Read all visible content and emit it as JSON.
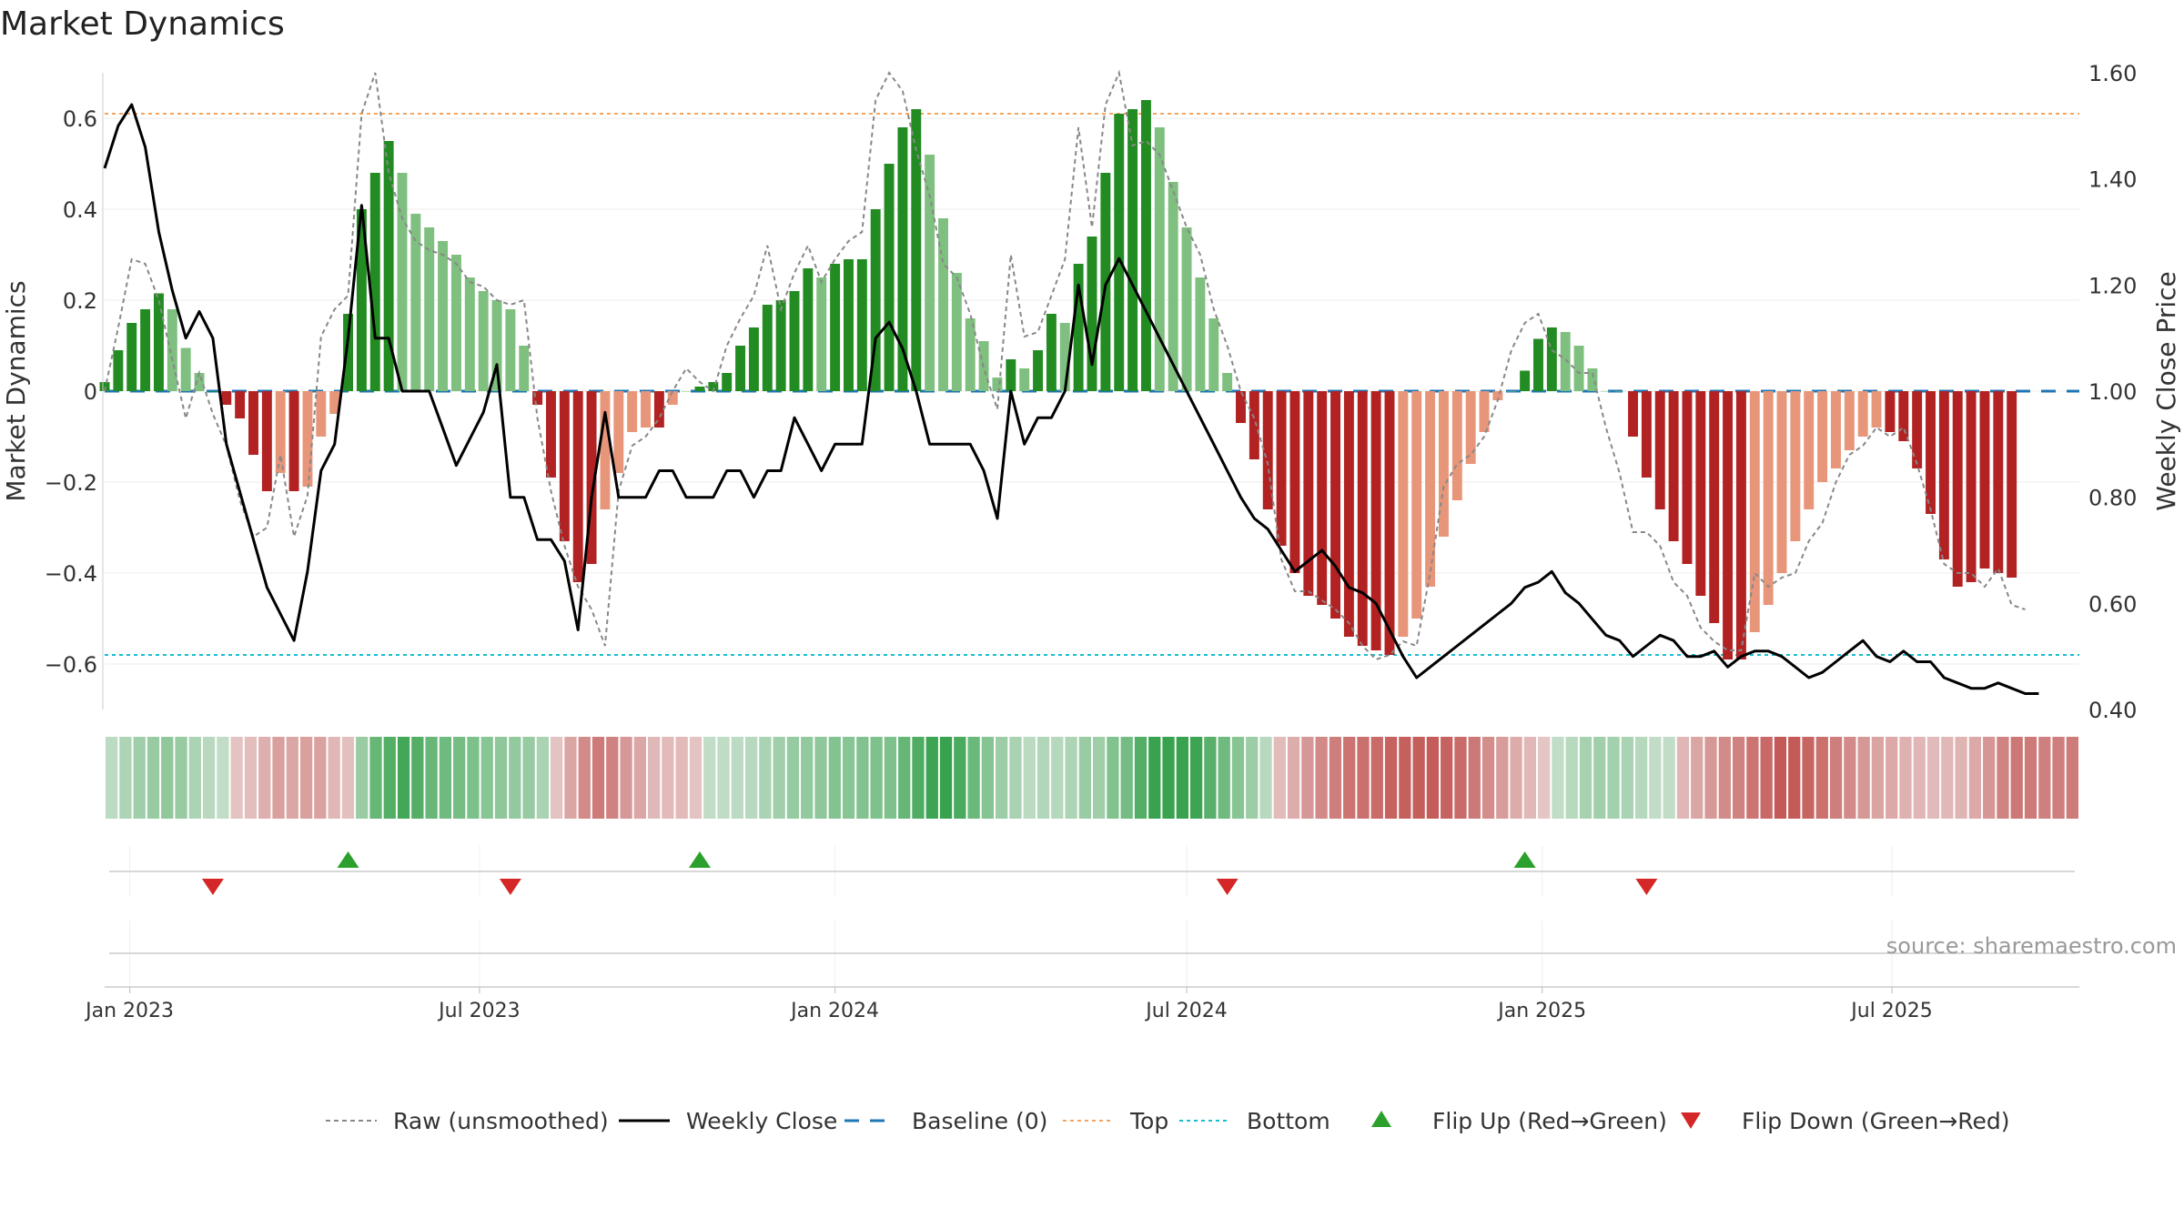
{
  "chart_data": {
    "type": "bar",
    "title": "Market Dynamics",
    "ylabel_left": "Market Dynamics",
    "ylabel_right": "Weekly Close Price",
    "source": "source: sharemaestro.com",
    "ylim_left": [
      -0.7,
      0.7
    ],
    "ylim_right": [
      0.4,
      1.6
    ],
    "yticks_left": [
      0.6,
      0.4,
      0.2,
      0,
      -0.2,
      -0.4,
      -0.6
    ],
    "yticks_left_labels": [
      "0.6",
      "0.4",
      "0.2",
      "0",
      "−0.2",
      "−0.4",
      "−0.6"
    ],
    "yticks_right": [
      1.6,
      1.4,
      1.2,
      1.0,
      0.8,
      0.6,
      0.4
    ],
    "yticks_right_labels": [
      "1.60",
      "1.40",
      "1.20",
      "1.00",
      "0.80",
      "0.60",
      "0.40"
    ],
    "x_start": "2022-12-19",
    "x_end": "2025-10-06",
    "xticks": [
      {
        "date": "2023-01-01",
        "label": "Jan 2023"
      },
      {
        "date": "2023-07-01",
        "label": "Jul 2023"
      },
      {
        "date": "2024-01-01",
        "label": "Jan 2024"
      },
      {
        "date": "2024-07-01",
        "label": "Jul 2024"
      },
      {
        "date": "2025-01-01",
        "label": "Jan 2025"
      },
      {
        "date": "2025-07-01",
        "label": "Jul 2025"
      }
    ],
    "top_line": 0.61,
    "bottom_line": -0.58,
    "baseline": 0,
    "colors": {
      "strong_green": "#228b22",
      "light_green": "#7fbf7f",
      "strong_red": "#b22222",
      "light_red": "#e8967a",
      "raw": "#888888",
      "close": "#000000",
      "baseline": "#1f77b4",
      "top": "#f4a460",
      "bottom": "#17becf",
      "flip_up": "#2ca02c",
      "flip_down": "#d62728"
    },
    "bars": [
      0.02,
      0.09,
      0.15,
      0.18,
      0.215,
      0.18,
      0.095,
      0.04,
      0.0,
      -0.03,
      -0.06,
      -0.14,
      -0.22,
      -0.18,
      -0.22,
      -0.21,
      -0.1,
      -0.05,
      0.17,
      0.4,
      0.48,
      0.55,
      0.48,
      0.39,
      0.36,
      0.33,
      0.3,
      0.25,
      0.22,
      0.2,
      0.18,
      0.1,
      -0.03,
      -0.19,
      -0.33,
      -0.42,
      -0.38,
      -0.26,
      -0.18,
      -0.09,
      -0.08,
      -0.08,
      -0.03,
      0.0,
      0.01,
      0.02,
      0.04,
      0.1,
      0.14,
      0.19,
      0.2,
      0.22,
      0.27,
      0.25,
      0.28,
      0.29,
      0.29,
      0.4,
      0.5,
      0.58,
      0.62,
      0.52,
      0.38,
      0.26,
      0.16,
      0.11,
      0.03,
      0.07,
      0.05,
      0.09,
      0.17,
      0.15,
      0.28,
      0.34,
      0.48,
      0.61,
      0.62,
      0.64,
      0.58,
      0.46,
      0.36,
      0.25,
      0.16,
      0.04,
      -0.07,
      -0.15,
      -0.26,
      -0.34,
      -0.4,
      -0.45,
      -0.47,
      -0.5,
      -0.54,
      -0.56,
      -0.57,
      -0.58,
      -0.54,
      -0.5,
      -0.43,
      -0.32,
      -0.24,
      -0.16,
      -0.09,
      -0.02,
      0.0,
      0.045,
      0.115,
      0.14,
      0.13,
      0.1,
      0.05,
      0.0,
      0.0,
      -0.1,
      -0.19,
      -0.26,
      -0.33,
      -0.38,
      -0.45,
      -0.51,
      -0.59,
      -0.59,
      -0.53,
      -0.47,
      -0.4,
      -0.33,
      -0.26,
      -0.2,
      -0.17,
      -0.13,
      -0.1,
      -0.08,
      -0.09,
      -0.11,
      -0.17,
      -0.27,
      -0.37,
      -0.43,
      -0.42,
      -0.39,
      -0.4,
      -0.41
    ],
    "bar_strength": [
      "s",
      "s",
      "s",
      "s",
      "s",
      "l",
      "l",
      "l",
      "s",
      "s",
      "s",
      "s",
      "s",
      "l",
      "s",
      "l",
      "l",
      "l",
      "s",
      "s",
      "s",
      "s",
      "l",
      "l",
      "l",
      "l",
      "l",
      "l",
      "l",
      "l",
      "l",
      "l",
      "s",
      "s",
      "s",
      "s",
      "s",
      "l",
      "l",
      "l",
      "l",
      "s",
      "l",
      "l",
      "s",
      "s",
      "s",
      "s",
      "s",
      "s",
      "s",
      "s",
      "s",
      "l",
      "s",
      "s",
      "s",
      "s",
      "s",
      "s",
      "s",
      "l",
      "l",
      "l",
      "l",
      "l",
      "l",
      "s",
      "l",
      "s",
      "s",
      "l",
      "s",
      "s",
      "s",
      "s",
      "s",
      "s",
      "l",
      "l",
      "l",
      "l",
      "l",
      "l",
      "s",
      "s",
      "s",
      "s",
      "s",
      "s",
      "s",
      "s",
      "s",
      "s",
      "s",
      "s",
      "l",
      "l",
      "l",
      "l",
      "l",
      "l",
      "l",
      "l",
      "l",
      "s",
      "s",
      "s",
      "l",
      "l",
      "l",
      "l",
      "l",
      "s",
      "s",
      "s",
      "s",
      "s",
      "s",
      "s",
      "s",
      "s",
      "l",
      "l",
      "l",
      "l",
      "l",
      "l",
      "l",
      "l",
      "l",
      "l",
      "s",
      "s",
      "s",
      "s",
      "s",
      "s",
      "s",
      "s",
      "s",
      "s"
    ],
    "raw": [
      0.0,
      0.14,
      0.29,
      0.28,
      0.2,
      0.07,
      -0.06,
      0.04,
      -0.05,
      -0.12,
      -0.24,
      -0.32,
      -0.3,
      -0.14,
      -0.32,
      -0.23,
      0.12,
      0.18,
      0.21,
      0.61,
      0.7,
      0.48,
      0.38,
      0.33,
      0.31,
      0.3,
      0.28,
      0.24,
      0.23,
      0.2,
      0.19,
      0.2,
      -0.06,
      -0.22,
      -0.34,
      -0.43,
      -0.48,
      -0.56,
      -0.22,
      -0.12,
      -0.1,
      -0.06,
      0.0,
      0.05,
      0.02,
      0.0,
      0.1,
      0.16,
      0.21,
      0.32,
      0.18,
      0.26,
      0.32,
      0.24,
      0.29,
      0.33,
      0.35,
      0.64,
      0.7,
      0.66,
      0.53,
      0.43,
      0.28,
      0.25,
      0.17,
      0.05,
      -0.04,
      0.3,
      0.12,
      0.13,
      0.21,
      0.29,
      0.58,
      0.36,
      0.63,
      0.7,
      0.54,
      0.55,
      0.52,
      0.44,
      0.36,
      0.3,
      0.18,
      0.1,
      0.0,
      -0.06,
      -0.16,
      -0.37,
      -0.44,
      -0.44,
      -0.46,
      -0.48,
      -0.51,
      -0.56,
      -0.59,
      -0.58,
      -0.55,
      -0.56,
      -0.4,
      -0.21,
      -0.16,
      -0.14,
      -0.1,
      -0.02,
      0.09,
      0.15,
      0.17,
      0.09,
      0.07,
      0.04,
      0.04,
      -0.08,
      -0.18,
      -0.31,
      -0.31,
      -0.34,
      -0.42,
      -0.45,
      -0.52,
      -0.55,
      -0.57,
      -0.57,
      -0.4,
      -0.43,
      -0.41,
      -0.4,
      -0.33,
      -0.29,
      -0.2,
      -0.14,
      -0.12,
      -0.08,
      -0.1,
      -0.08,
      -0.16,
      -0.26,
      -0.38,
      -0.4,
      -0.4,
      -0.43,
      -0.39,
      -0.47,
      -0.48
    ],
    "close": [
      1.42,
      1.5,
      1.54,
      1.46,
      1.3,
      1.19,
      1.1,
      1.15,
      1.1,
      0.9,
      0.81,
      0.72,
      0.63,
      0.58,
      0.53,
      0.66,
      0.85,
      0.9,
      1.1,
      1.35,
      1.1,
      1.1,
      1.0,
      1.0,
      1.0,
      0.93,
      0.86,
      0.91,
      0.96,
      1.05,
      0.8,
      0.8,
      0.72,
      0.72,
      0.68,
      0.55,
      0.8,
      0.96,
      0.8,
      0.8,
      0.8,
      0.85,
      0.85,
      0.8,
      0.8,
      0.8,
      0.85,
      0.85,
      0.8,
      0.85,
      0.85,
      0.95,
      0.9,
      0.85,
      0.9,
      0.9,
      0.9,
      1.1,
      1.13,
      1.08,
      1.0,
      0.9,
      0.9,
      0.9,
      0.9,
      0.85,
      0.76,
      1.0,
      0.9,
      0.95,
      0.95,
      1.0,
      1.2,
      1.05,
      1.2,
      1.25,
      1.2,
      1.15,
      1.1,
      1.05,
      1.0,
      0.95,
      0.9,
      0.85,
      0.8,
      0.76,
      0.74,
      0.7,
      0.66,
      0.68,
      0.7,
      0.67,
      0.63,
      0.62,
      0.6,
      0.55,
      0.5,
      0.46,
      0.48,
      0.5,
      0.52,
      0.54,
      0.56,
      0.58,
      0.6,
      0.63,
      0.64,
      0.66,
      0.62,
      0.6,
      0.57,
      0.54,
      0.53,
      0.5,
      0.52,
      0.54,
      0.53,
      0.5,
      0.5,
      0.51,
      0.48,
      0.5,
      0.51,
      0.51,
      0.5,
      0.48,
      0.46,
      0.47,
      0.49,
      0.51,
      0.53,
      0.5,
      0.49,
      0.51,
      0.49,
      0.49,
      0.46,
      0.45,
      0.44,
      0.44,
      0.45,
      0.44,
      0.43,
      0.43
    ],
    "flips_up": [
      "2023-04-24",
      "2023-10-23",
      "2024-12-23"
    ],
    "flips_down": [
      "2023-02-13",
      "2023-07-17",
      "2024-07-22",
      "2025-02-24"
    ],
    "legend": [
      {
        "label": "Raw (unsmoothed)",
        "style": "dashed",
        "color": "#888888"
      },
      {
        "label": "Weekly Close",
        "style": "solid",
        "color": "#000000"
      },
      {
        "label": "Baseline (0)",
        "style": "longdash",
        "color": "#1f77b4"
      },
      {
        "label": "Top",
        "style": "dotted",
        "color": "#f4a460"
      },
      {
        "label": "Bottom",
        "style": "dotted",
        "color": "#17becf"
      },
      {
        "label": "Flip Up (Red→Green)",
        "style": "tri-up",
        "color": "#2ca02c"
      },
      {
        "label": "Flip Down (Green→Red)",
        "style": "tri-down",
        "color": "#d62728"
      }
    ]
  }
}
